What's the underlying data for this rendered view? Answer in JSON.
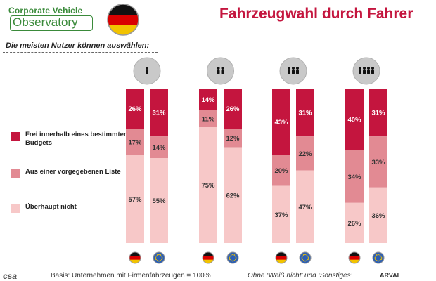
{
  "header": {
    "logo_line1": "Corporate Vehicle",
    "logo_line2": "Observatory",
    "title": "Fahrzeugwahl durch Fahrer",
    "subtitle": "Die meisten Nutzer können auswählen:"
  },
  "colors": {
    "budget": "#c4153e",
    "list": "#e28a93",
    "none": "#f7c8c8",
    "accent": "#c4153e"
  },
  "icons": {
    "group_icons": [
      "one-person-icon",
      "two-persons-icon",
      "three-persons-icon",
      "four-persons-icon"
    ],
    "flag_icons": [
      "germany-flag-icon",
      "europe-flag-icon"
    ]
  },
  "chart_data": {
    "type": "bar",
    "stacked": true,
    "groups": [
      {
        "people": 1,
        "bars": [
          {
            "region": "DE",
            "none": 57,
            "list": 17,
            "budget": 26
          },
          {
            "region": "EU",
            "none": 55,
            "list": 14,
            "budget": 31
          }
        ]
      },
      {
        "people": 2,
        "bars": [
          {
            "region": "DE",
            "none": 75,
            "list": 11,
            "budget": 14
          },
          {
            "region": "EU",
            "none": 62,
            "list": 12,
            "budget": 26
          }
        ]
      },
      {
        "people": 3,
        "bars": [
          {
            "region": "DE",
            "none": 37,
            "list": 20,
            "budget": 43
          },
          {
            "region": "EU",
            "none": 47,
            "list": 22,
            "budget": 31
          }
        ]
      },
      {
        "people": 4,
        "bars": [
          {
            "region": "DE",
            "none": 26,
            "list": 34,
            "budget": 40
          },
          {
            "region": "EU",
            "none": 36,
            "list": 33,
            "budget": 31
          }
        ]
      }
    ],
    "legend": [
      {
        "key": "budget",
        "label": "Frei innerhalb eines bestimmten Budgets"
      },
      {
        "key": "list",
        "label": "Aus einer vorgegebenen Liste"
      },
      {
        "key": "none",
        "label": "Überhaupt nicht"
      }
    ],
    "value_suffix": "%",
    "ylim": [
      0,
      100
    ],
    "grid": false
  },
  "footer": {
    "basis": "Basis: Unternehmen mit Firmenfahrzeugen = 100%",
    "note": "Ohne ‘Weiß nicht’ und ‘Sonstiges’",
    "brand_left": "csa",
    "brand_right": "ARVAL"
  }
}
